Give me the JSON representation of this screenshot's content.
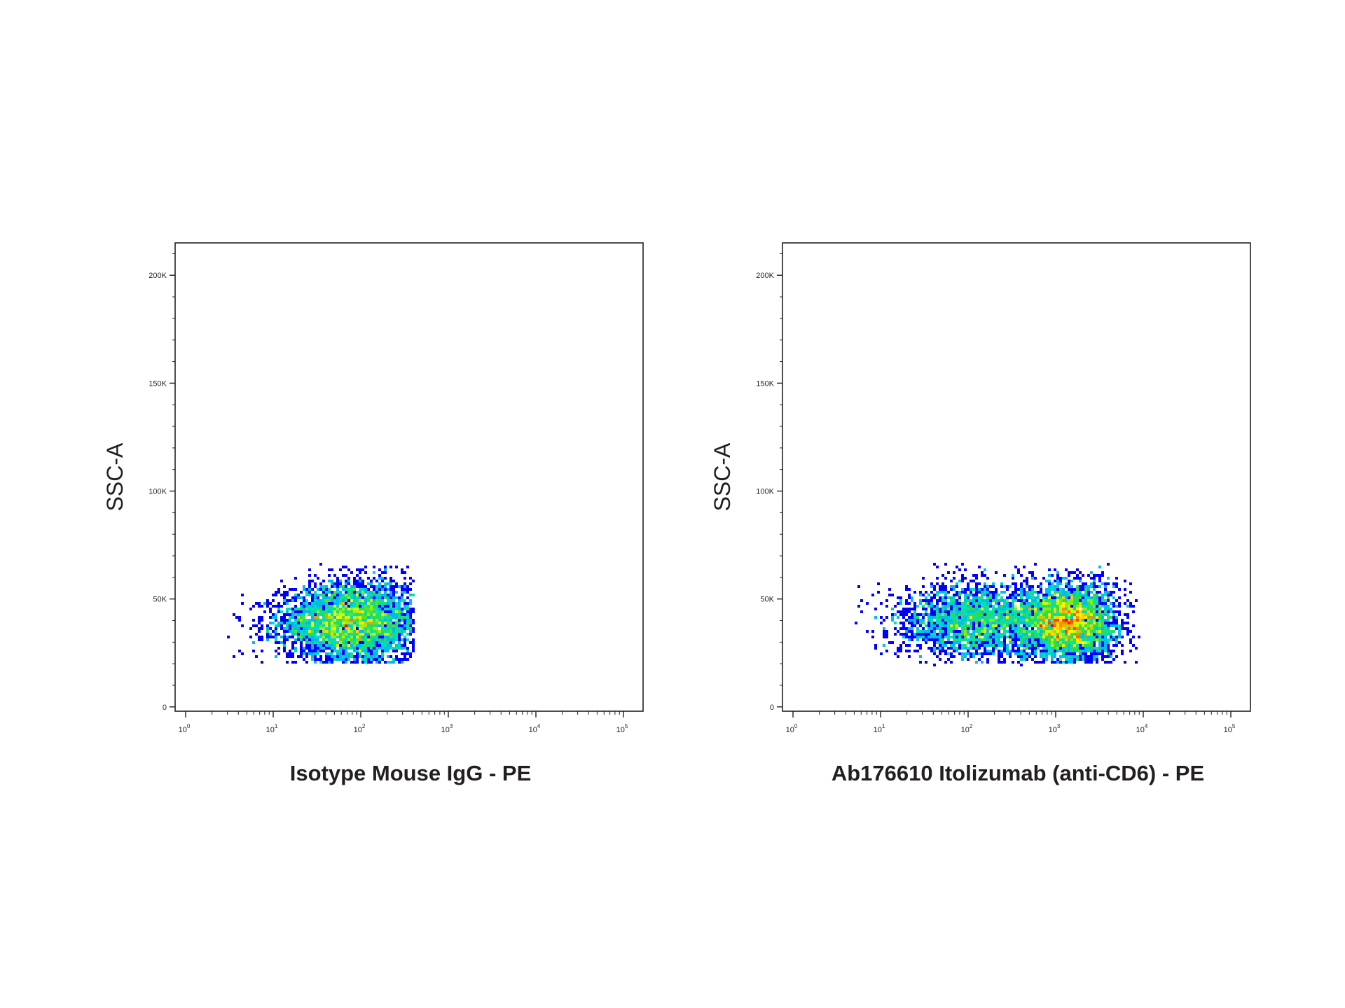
{
  "chart_data": [
    {
      "type": "scatter",
      "subtype": "density-dot-plot",
      "title": "",
      "xlabel": "Isotype Mouse IgG - PE",
      "ylabel": "SSC-A",
      "xscale": "log",
      "xlim": [
        1,
        150000
      ],
      "ylim": [
        -2000,
        215000
      ],
      "x_ticks": [
        {
          "base": "10",
          "exp": "0"
        },
        {
          "base": "10",
          "exp": "1"
        },
        {
          "base": "10",
          "exp": "2"
        },
        {
          "base": "10",
          "exp": "3"
        },
        {
          "base": "10",
          "exp": "4"
        },
        {
          "base": "10",
          "exp": "5"
        }
      ],
      "y_ticks": [
        {
          "value": 0,
          "label": "0"
        },
        {
          "value": 50000,
          "label": "50K"
        },
        {
          "value": 100000,
          "label": "100K"
        },
        {
          "value": 150000,
          "label": "150K"
        },
        {
          "value": 200000,
          "label": "200K"
        }
      ],
      "grid": false,
      "color_scale": [
        "#0000ff",
        "#00aaff",
        "#00e0c0",
        "#33dd33",
        "#ffff00",
        "#ff8800",
        "#ff0000"
      ],
      "populations": [
        {
          "center_x": 80,
          "center_y": 39000,
          "log10_x_spread": 0.42,
          "y_spread": 9500,
          "log10_x_range": [
            0.4,
            2.6
          ],
          "y_range": [
            20000,
            66000
          ],
          "events": 4200
        }
      ]
    },
    {
      "type": "scatter",
      "subtype": "density-dot-plot",
      "title": "",
      "xlabel": "Ab176610 Itolizumab (anti-CD6) - PE",
      "ylabel": "SSC-A",
      "xscale": "log",
      "xlim": [
        1,
        150000
      ],
      "ylim": [
        -2000,
        215000
      ],
      "x_ticks": [
        {
          "base": "10",
          "exp": "0"
        },
        {
          "base": "10",
          "exp": "1"
        },
        {
          "base": "10",
          "exp": "2"
        },
        {
          "base": "10",
          "exp": "3"
        },
        {
          "base": "10",
          "exp": "4"
        },
        {
          "base": "10",
          "exp": "5"
        }
      ],
      "y_ticks": [
        {
          "value": 0,
          "label": "0"
        },
        {
          "value": 50000,
          "label": "50K"
        },
        {
          "value": 100000,
          "label": "100K"
        },
        {
          "value": 150000,
          "label": "150K"
        },
        {
          "value": 200000,
          "label": "200K"
        }
      ],
      "grid": false,
      "color_scale": [
        "#0000ff",
        "#00aaff",
        "#00e0c0",
        "#33dd33",
        "#ffff00",
        "#ff8800",
        "#ff0000"
      ],
      "populations": [
        {
          "center_x": 1400,
          "center_y": 39000,
          "log10_x_spread": 0.28,
          "y_spread": 9000,
          "log10_x_range": [
            0.7,
            3.95
          ],
          "y_range": [
            20000,
            66000
          ],
          "events": 3400
        },
        {
          "center_x": 120,
          "center_y": 40000,
          "log10_x_spread": 0.45,
          "y_spread": 9500,
          "log10_x_range": [
            0.7,
            3.95
          ],
          "y_range": [
            20000,
            66000
          ],
          "events": 2400
        }
      ]
    }
  ]
}
